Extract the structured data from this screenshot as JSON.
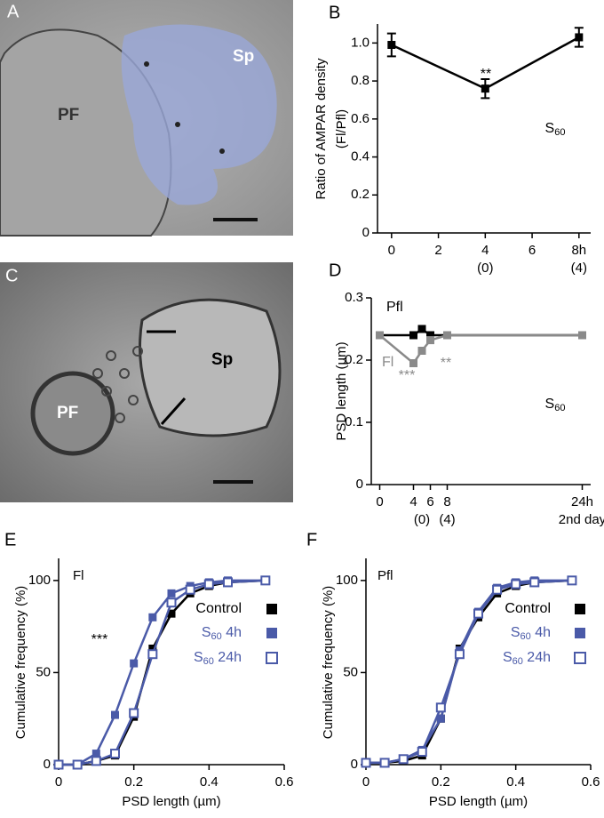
{
  "images": [
    {
      "letter": "A",
      "labels": [
        "PF",
        "Sp"
      ]
    },
    {
      "letter": "C",
      "labels": [
        "PF",
        "Sp"
      ]
    }
  ],
  "chart_data": [
    {
      "type": "line",
      "letter": "B",
      "ylabel": [
        "Ratio of AMPAR density",
        "(Fl/Pfl)"
      ],
      "x": [
        0,
        4,
        8
      ],
      "series": [
        {
          "color": "#000000",
          "marker": "square",
          "values": [
            0.99,
            0.76,
            1.03
          ],
          "errors": [
            0.06,
            0.05,
            0.05
          ]
        }
      ],
      "xlim": [
        -0.6,
        8.5
      ],
      "xticks": [
        0,
        2,
        4,
        6,
        {
          "value": 8,
          "label": "8h"
        }
      ],
      "xtick_sublabels": [
        {
          "value": 4,
          "label": "(0)"
        },
        {
          "value": 8,
          "label": "(4)"
        }
      ],
      "ylim": [
        0,
        1.1
      ],
      "yticks": [
        0,
        0.2,
        0.4,
        0.6,
        0.8,
        {
          "value": 1,
          "label": "1.0"
        }
      ],
      "annotations": [
        {
          "text": "**",
          "color": "#000000"
        },
        {
          "text": "S60",
          "color": "#000000"
        }
      ]
    },
    {
      "type": "line",
      "letter": "D",
      "ylabel": [
        "PSD length (µm)"
      ],
      "x": [
        0,
        4,
        5,
        6,
        8,
        24
      ],
      "series": [
        {
          "name": "Pfl",
          "color": "#000000",
          "marker": "square",
          "values": [
            0.24,
            0.24,
            0.25,
            0.24,
            0.24,
            0.24
          ]
        },
        {
          "name": "Fl",
          "color": "#8a8a8a",
          "marker": "square",
          "values": [
            0.24,
            0.195,
            0.215,
            0.232,
            0.24,
            0.24
          ]
        }
      ],
      "xlim": [
        -1,
        25
      ],
      "xticks": [
        0,
        4,
        6,
        8,
        {
          "value": 24,
          "label": "24h"
        }
      ],
      "xtick_sublabels": [
        {
          "value": 5,
          "label": "(0)"
        },
        {
          "value": 8,
          "label": "(4)"
        },
        {
          "value": 24,
          "label": "2nd day"
        }
      ],
      "ylim": [
        0,
        0.3
      ],
      "yticks": [
        0,
        0.1,
        0.2,
        0.3
      ],
      "annotations": [
        {
          "text": "***",
          "color": "#8a8a8a"
        },
        {
          "text": "**",
          "color": "#8a8a8a"
        },
        {
          "text": "S60",
          "color": "#000000"
        }
      ]
    },
    {
      "type": "line",
      "letter": "E",
      "title": "Fl",
      "ylabel": [
        "Cumulative frequency (%)"
      ],
      "xlabel": "PSD length (µm)",
      "x": [
        0,
        0.05,
        0.1,
        0.15,
        0.2,
        0.25,
        0.3,
        0.35,
        0.4,
        0.45,
        0.55
      ],
      "series": [
        {
          "name": "Control",
          "color": "#000000",
          "marker": "square",
          "values": [
            0,
            0,
            2,
            5,
            26,
            63,
            82,
            93,
            97,
            99,
            100
          ]
        },
        {
          "name": "S60 4h",
          "color": "#4a5aa8",
          "marker": "square",
          "values": [
            0,
            0,
            6,
            27,
            55,
            80,
            93,
            97,
            99,
            100,
            100
          ]
        },
        {
          "name": "S60 24h",
          "color": "#4a5aa8",
          "marker": "open-square",
          "values": [
            0,
            0,
            2,
            6,
            28,
            60,
            88,
            95,
            98,
            99,
            100
          ]
        }
      ],
      "legend": "right",
      "xlim": [
        0,
        0.6
      ],
      "xticks": [
        0,
        0.2,
        0.4,
        0.6
      ],
      "ylim": [
        0,
        112
      ],
      "yticks": [
        0,
        50,
        100
      ],
      "annotations": [
        {
          "text": "***",
          "color": "#000000"
        }
      ]
    },
    {
      "type": "line",
      "letter": "F",
      "title": "Pfl",
      "ylabel": [
        "Cumulative frequency (%)"
      ],
      "xlabel": "PSD length (µm)",
      "x": [
        0,
        0.05,
        0.1,
        0.15,
        0.2,
        0.25,
        0.3,
        0.35,
        0.4,
        0.45,
        0.55
      ],
      "series": [
        {
          "name": "Control",
          "color": "#000000",
          "marker": "square",
          "values": [
            1,
            1,
            2,
            5,
            25,
            63,
            80,
            93,
            97,
            99,
            100
          ]
        },
        {
          "name": "S60 4h",
          "color": "#4a5aa8",
          "marker": "square",
          "values": [
            1,
            1,
            3,
            8,
            25,
            62,
            83,
            96,
            99,
            100,
            100
          ]
        },
        {
          "name": "S60 24h",
          "color": "#4a5aa8",
          "marker": "open-square",
          "values": [
            1,
            1,
            3,
            7,
            31,
            60,
            82,
            95,
            98,
            99,
            100
          ]
        }
      ],
      "legend": "right",
      "xlim": [
        0,
        0.6
      ],
      "xticks": [
        0,
        0.2,
        0.4,
        0.6
      ],
      "ylim": [
        0,
        112
      ],
      "yticks": [
        0,
        50,
        100
      ],
      "annotations": []
    }
  ]
}
